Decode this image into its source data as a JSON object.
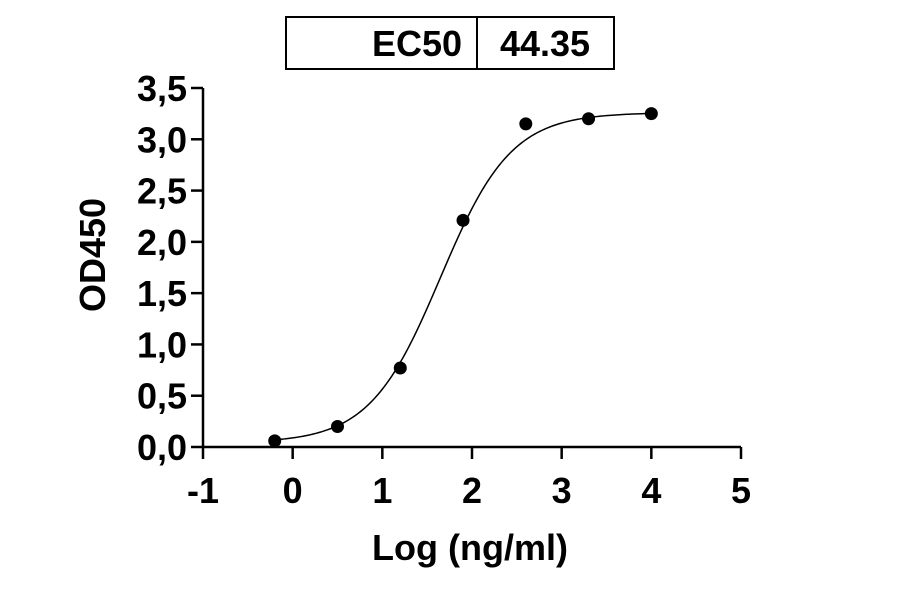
{
  "ec50_table": {
    "label": "EC50",
    "value": "44.35"
  },
  "chart_data": {
    "type": "scatter",
    "xlabel": "Log (ng/ml)",
    "ylabel": "OD450",
    "xlim": [
      -1,
      5
    ],
    "ylim": [
      0,
      3.5
    ],
    "x_ticks": [
      -1,
      0,
      1,
      2,
      3,
      4,
      5
    ],
    "x_tick_labels": [
      "-1",
      "0",
      "1",
      "2",
      "3",
      "4",
      "5"
    ],
    "y_ticks": [
      0,
      0.5,
      1.0,
      1.5,
      2.0,
      2.5,
      3.0,
      3.5
    ],
    "y_tick_labels": [
      "0,0",
      "0,5",
      "1,0",
      "1,5",
      "2,0",
      "2,5",
      "3,0",
      "3,5"
    ],
    "grid": false,
    "series": [
      {
        "x": [
          -0.2,
          0.5,
          1.2,
          1.9,
          2.6,
          3.3,
          4.0
        ],
        "y": [
          0.06,
          0.2,
          0.77,
          2.21,
          3.15,
          3.2,
          3.25
        ]
      }
    ],
    "fit": {
      "model": "4PL",
      "bottom": 0.04,
      "top": 3.26,
      "logEC50": 1.647,
      "hillslope": 1.1,
      "x_range": [
        -0.2,
        4.0
      ]
    }
  }
}
